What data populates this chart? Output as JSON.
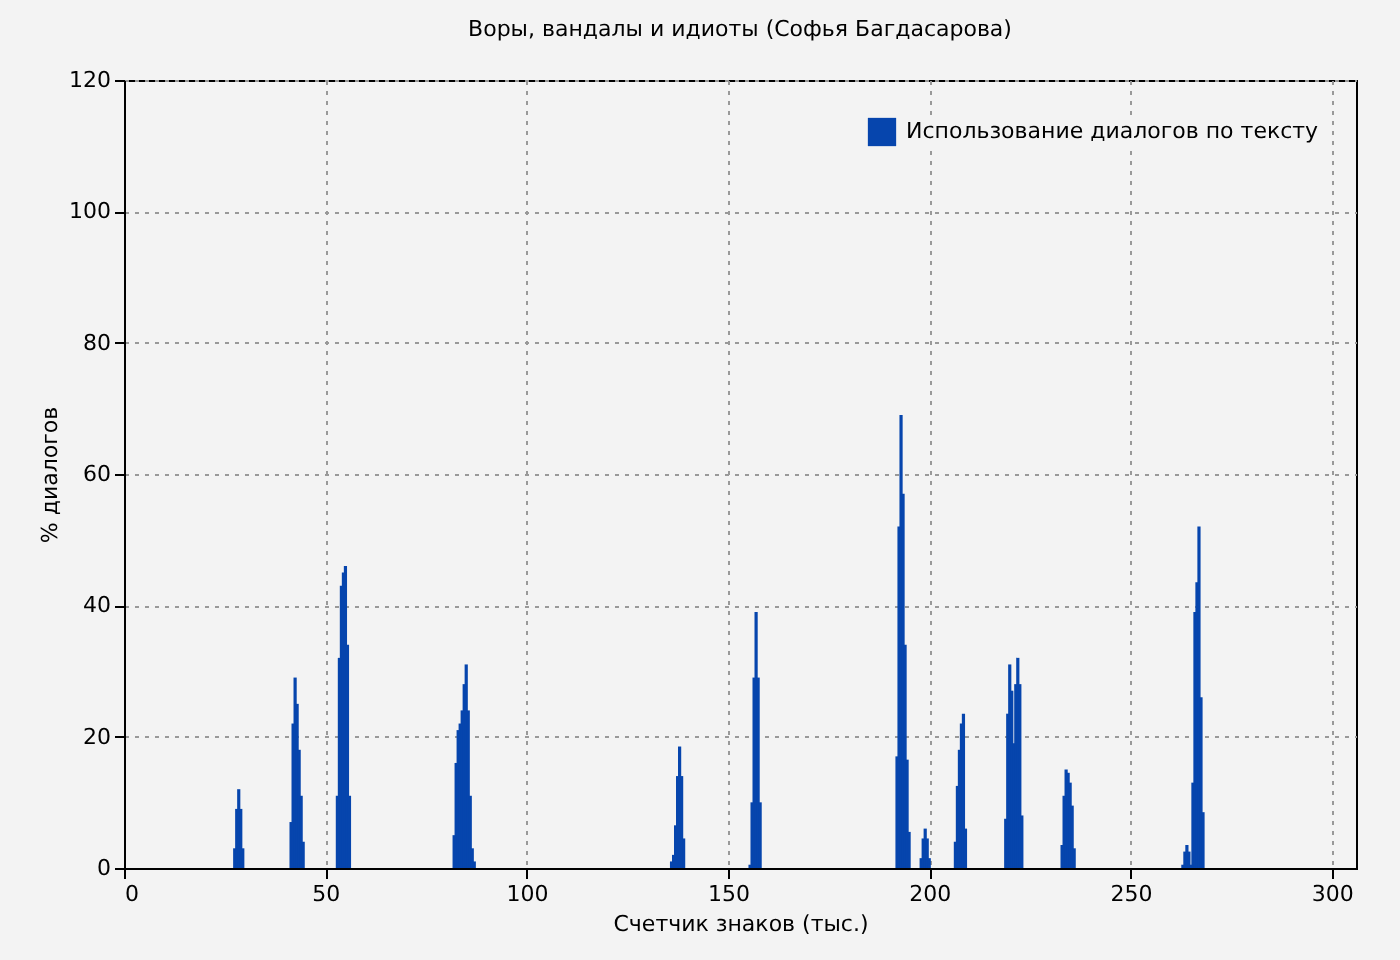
{
  "chart_data": {
    "type": "bar",
    "title": "Воры, вандалы и идиоты (Софья Багдасарова)",
    "xlabel": "Счетчик знаков (тыс.)",
    "ylabel": "% диалогов",
    "x": [
      27.5,
      28,
      28.5,
      29,
      29.5,
      41.5,
      42,
      42.5,
      43,
      43.5,
      44,
      44.5,
      53,
      53.5,
      54,
      54.5,
      55,
      55.5,
      56,
      82,
      82.5,
      83,
      83.5,
      84,
      84.5,
      85,
      85.5,
      86,
      86.5,
      87,
      136,
      136.5,
      137,
      137.5,
      138,
      138.5,
      139,
      155.5,
      156,
      156.5,
      157,
      157.5,
      158,
      192,
      192.5,
      193,
      193.5,
      194,
      194.5,
      195,
      198,
      198.5,
      199,
      199.5,
      200,
      206.5,
      207,
      207.5,
      208,
      208.5,
      209,
      219,
      219.5,
      220,
      220.5,
      221,
      221.5,
      222,
      222.5,
      223,
      233,
      233.5,
      234,
      234.5,
      235,
      235.5,
      236,
      263,
      263.5,
      264,
      264.5,
      265,
      265.5,
      266,
      266.5,
      267,
      267.5,
      268
    ],
    "series": [
      {
        "name": "Использование диалогов по тексту",
        "color": "#0645ad",
        "values": [
          3,
          9,
          12,
          9,
          3,
          7,
          22,
          29,
          25,
          18,
          11,
          4,
          11,
          32,
          43,
          45,
          46,
          34,
          11,
          5,
          16,
          21,
          22,
          24,
          28,
          31,
          24,
          11,
          3,
          1,
          1,
          2,
          6.5,
          14,
          18.5,
          14,
          4.5,
          0.5,
          10,
          29,
          39,
          29,
          10,
          17,
          52,
          69,
          57,
          34,
          16.5,
          5.5,
          1.5,
          4.5,
          6,
          4.5,
          1.5,
          4,
          12.5,
          18,
          22,
          23.5,
          6,
          7.5,
          23.5,
          31,
          27,
          19,
          28,
          32,
          28,
          8,
          3.5,
          11,
          15,
          14.5,
          13,
          9.5,
          3,
          0.5,
          2.5,
          3.5,
          2.5,
          0.5,
          13,
          39,
          43.5,
          52,
          26,
          8.5
        ]
      }
    ],
    "xlim": [
      0,
      306
    ],
    "xticks": [
      0,
      50,
      100,
      150,
      200,
      250,
      300
    ],
    "ylim": [
      0,
      120
    ],
    "yticks": [
      0,
      20,
      40,
      60,
      80,
      100,
      120
    ],
    "grid": true,
    "legend": "top right"
  }
}
